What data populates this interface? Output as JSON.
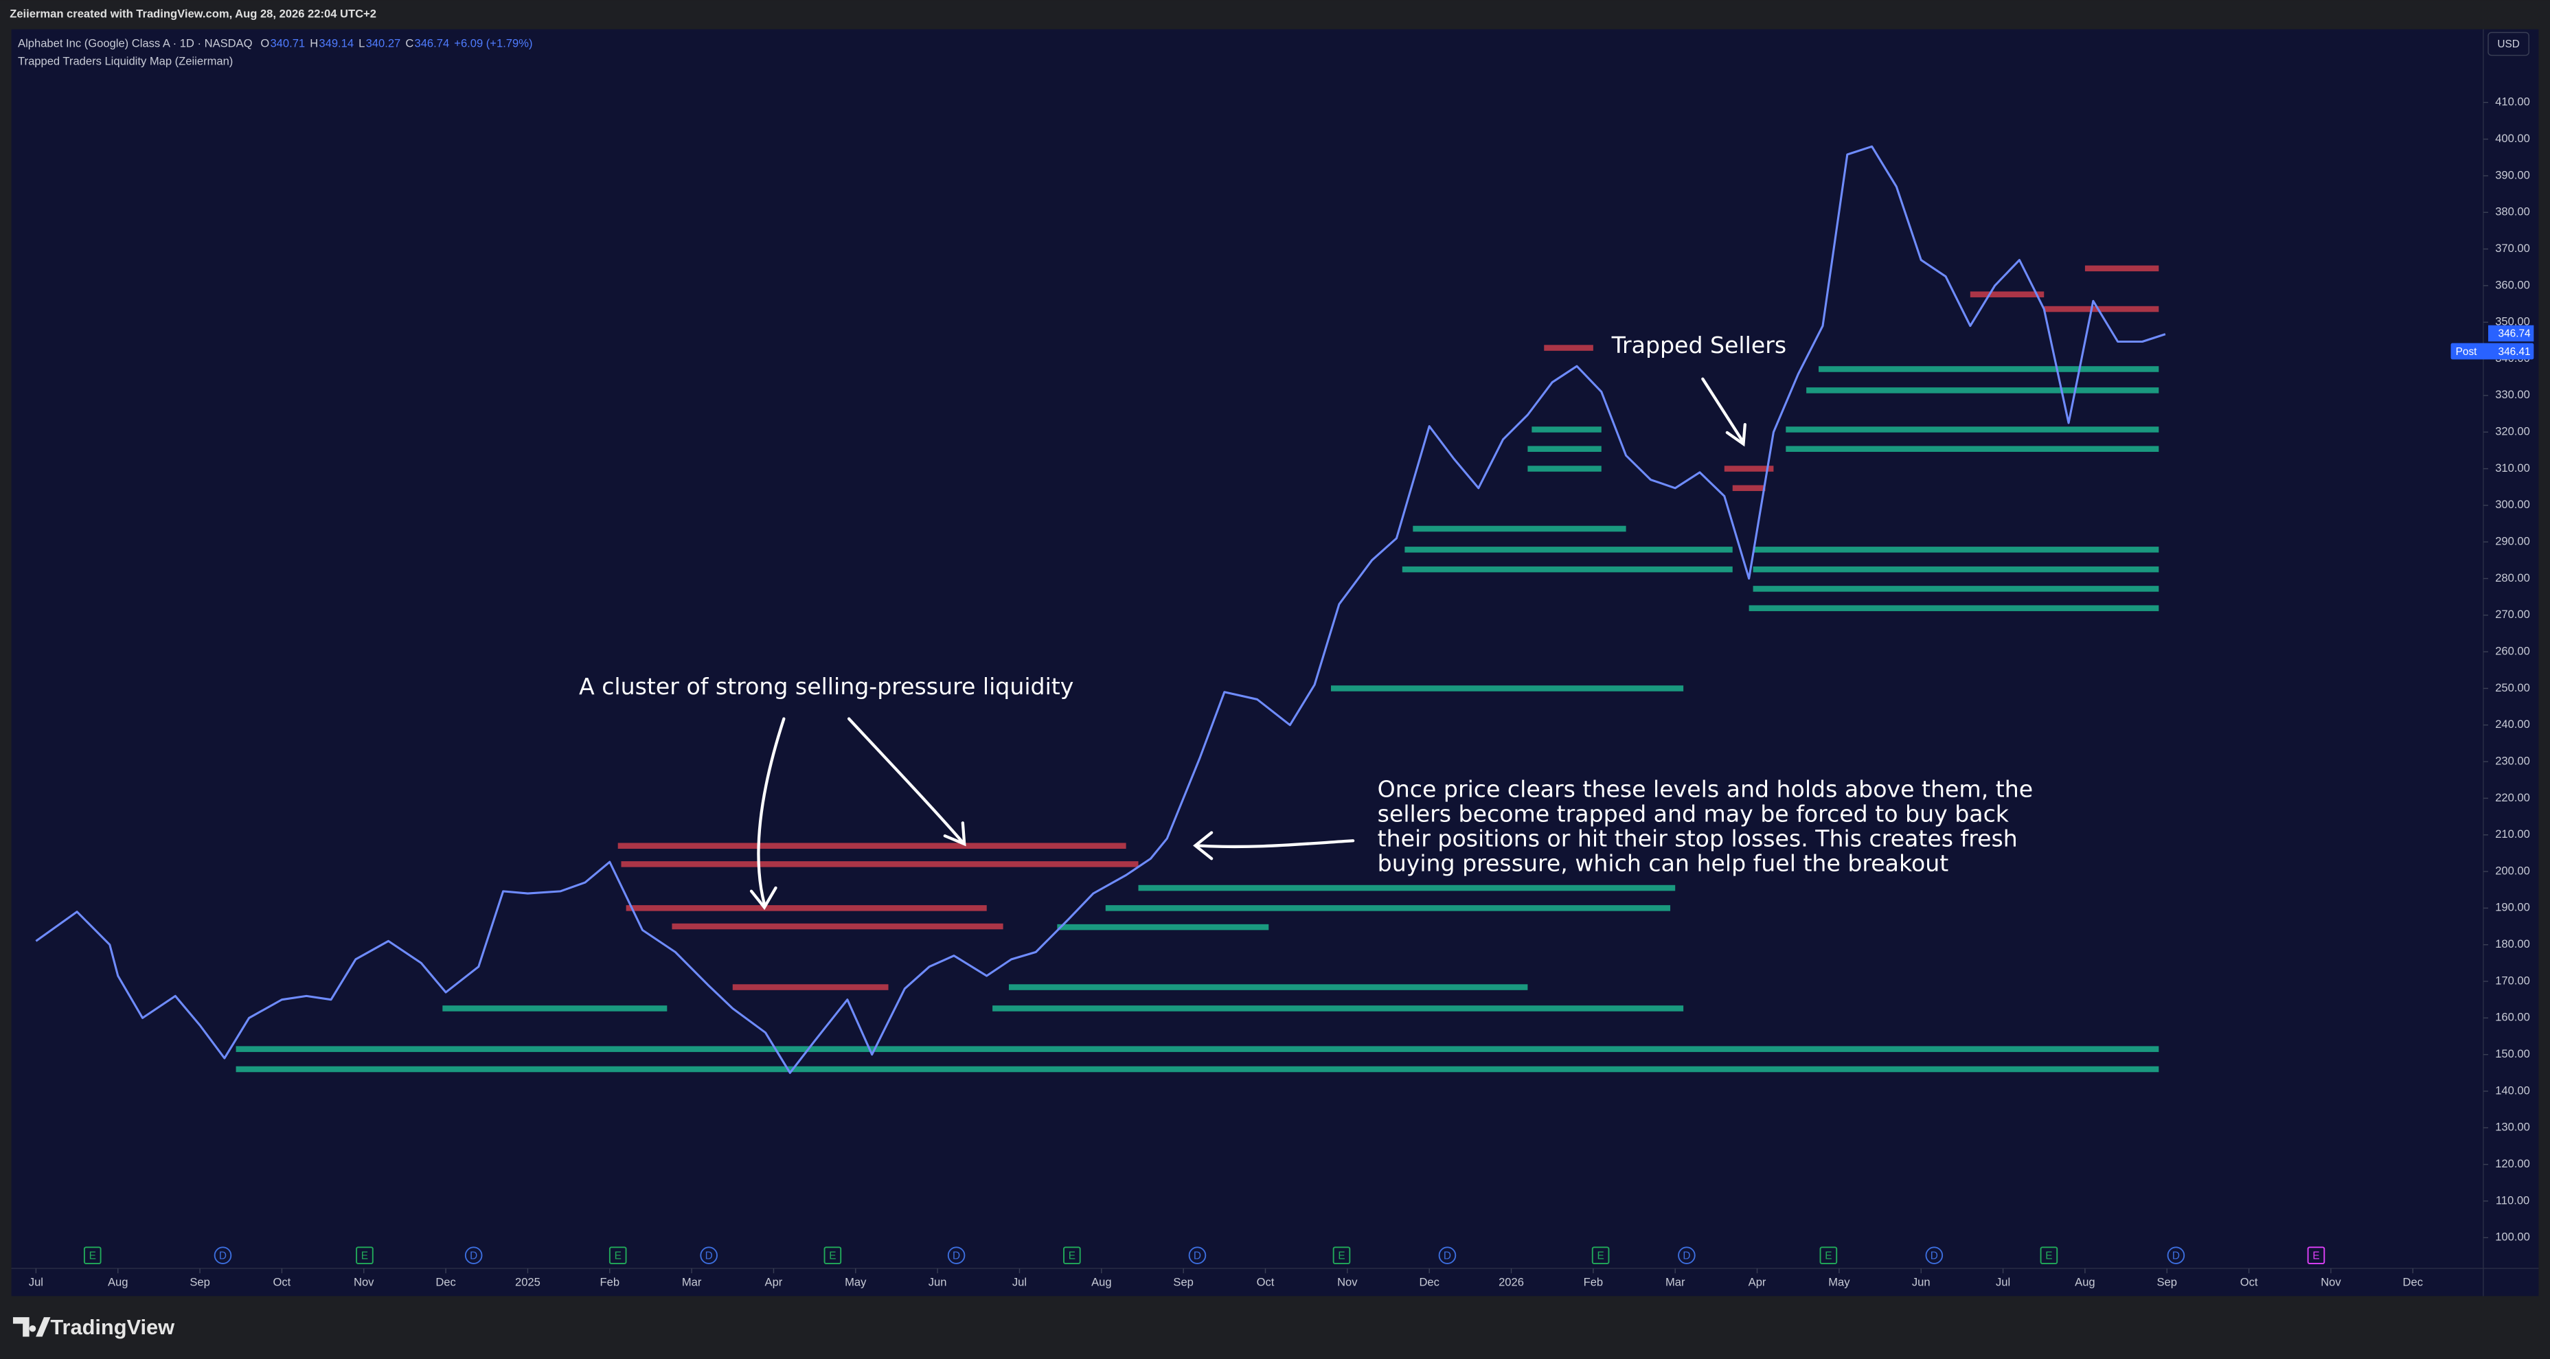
{
  "header": {
    "credit": "Zeiierman created with TradingView.com, Aug 28, 2026 22:04 UTC+2",
    "symbol": "Alphabet Inc (Google) Class A · 1D · NASDAQ",
    "ohlc": [
      {
        "label": "O",
        "value": "340.71"
      },
      {
        "label": "H",
        "value": "349.14"
      },
      {
        "label": "L",
        "value": "340.27"
      },
      {
        "label": "C",
        "value": "346.74"
      }
    ],
    "change": "+6.09 (+1.79%)",
    "indicator": "Trapped Traders Liquidity Map (Zeiierman)",
    "currency": "USD",
    "last_price": "346.74",
    "post_label": "Post",
    "post_price": "346.41",
    "logo": "TradingView"
  },
  "chart_data": {
    "type": "line",
    "xlim": [
      -0.3,
      29.86
    ],
    "ylim": [
      91.6,
      430
    ],
    "xticks": [
      {
        "value": 0,
        "label": "Jul"
      },
      {
        "value": 1,
        "label": "Aug"
      },
      {
        "value": 2,
        "label": "Sep"
      },
      {
        "value": 3,
        "label": "Oct"
      },
      {
        "value": 4,
        "label": "Nov"
      },
      {
        "value": 5,
        "label": "Dec"
      },
      {
        "value": 6,
        "label": "2025"
      },
      {
        "value": 7,
        "label": "Feb"
      },
      {
        "value": 8,
        "label": "Mar"
      },
      {
        "value": 9,
        "label": "Apr"
      },
      {
        "value": 10,
        "label": "May"
      },
      {
        "value": 11,
        "label": "Jun"
      },
      {
        "value": 12,
        "label": "Jul"
      },
      {
        "value": 13,
        "label": "Aug"
      },
      {
        "value": 14,
        "label": "Sep"
      },
      {
        "value": 15,
        "label": "Oct"
      },
      {
        "value": 16,
        "label": "Nov"
      },
      {
        "value": 17,
        "label": "Dec"
      },
      {
        "value": 18,
        "label": "2026"
      },
      {
        "value": 19,
        "label": "Feb"
      },
      {
        "value": 20,
        "label": "Mar"
      },
      {
        "value": 21,
        "label": "Apr"
      },
      {
        "value": 22,
        "label": "May"
      },
      {
        "value": 23,
        "label": "Jun"
      },
      {
        "value": 24,
        "label": "Jul"
      },
      {
        "value": 25,
        "label": "Aug"
      },
      {
        "value": 26,
        "label": "Sep"
      },
      {
        "value": 27,
        "label": "Oct"
      },
      {
        "value": 28,
        "label": "Nov"
      },
      {
        "value": 29,
        "label": "Dec"
      }
    ],
    "yticks": [
      {
        "value": 100,
        "label": "100.00"
      },
      {
        "value": 110,
        "label": "110.00"
      },
      {
        "value": 120,
        "label": "120.00"
      },
      {
        "value": 130,
        "label": "130.00"
      },
      {
        "value": 140,
        "label": "140.00"
      },
      {
        "value": 150,
        "label": "150.00"
      },
      {
        "value": 160,
        "label": "160.00"
      },
      {
        "value": 170,
        "label": "170.00"
      },
      {
        "value": 180,
        "label": "180.00"
      },
      {
        "value": 190,
        "label": "190.00"
      },
      {
        "value": 200,
        "label": "200.00"
      },
      {
        "value": 210,
        "label": "210.00"
      },
      {
        "value": 220,
        "label": "220.00"
      },
      {
        "value": 230,
        "label": "230.00"
      },
      {
        "value": 240,
        "label": "240.00"
      },
      {
        "value": 250,
        "label": "250.00"
      },
      {
        "value": 260,
        "label": "260.00"
      },
      {
        "value": 270,
        "label": "270.00"
      },
      {
        "value": 280,
        "label": "280.00"
      },
      {
        "value": 290,
        "label": "290.00"
      },
      {
        "value": 300,
        "label": "300.00"
      },
      {
        "value": 310,
        "label": "310.00"
      },
      {
        "value": 320,
        "label": "320.00"
      },
      {
        "value": 330,
        "label": "330.00"
      },
      {
        "value": 340,
        "label": "340.00"
      },
      {
        "value": 350,
        "label": "350.00"
      },
      {
        "value": 360,
        "label": "360.00"
      },
      {
        "value": 370,
        "label": "370.00"
      },
      {
        "value": 380,
        "label": "380.00"
      },
      {
        "value": 390,
        "label": "390.00"
      },
      {
        "value": 400,
        "label": "400.00"
      },
      {
        "value": 410,
        "label": "410.00"
      }
    ],
    "grid": false,
    "series": [
      {
        "color": "#6f8cff",
        "x": [
          0,
          0.5,
          0.9,
          1.0,
          1.3,
          1.7,
          2.0,
          2.3,
          2.6,
          3.0,
          3.3,
          3.6,
          3.9,
          4.3,
          4.7,
          5.0,
          5.4,
          5.7,
          6.0,
          6.4,
          6.7,
          7.0,
          7.4,
          7.8,
          8.2,
          8.5,
          8.9,
          9.2,
          9.5,
          9.9,
          10.2,
          10.6,
          10.9,
          11.2,
          11.6,
          11.9,
          12.2,
          12.6,
          12.9,
          13.3,
          13.6,
          13.8,
          14.2,
          14.5,
          14.9,
          15.3,
          15.6,
          15.9,
          16.3,
          16.6,
          17.0,
          17.3,
          17.6,
          17.9,
          18.2,
          18.5,
          18.8,
          19.1,
          19.4,
          19.7,
          20.0,
          20.3,
          20.6,
          20.9,
          21.2,
          21.5,
          21.8,
          22.1,
          22.4,
          22.7,
          23.0,
          23.3,
          23.6,
          23.9,
          24.2,
          24.5,
          24.8,
          25.1,
          25.4,
          25.7,
          25.98
        ],
        "values": [
          181,
          189,
          180,
          171.5,
          160,
          166,
          158,
          149,
          160,
          165,
          166,
          165,
          176,
          181,
          175,
          167,
          174,
          194.6,
          194,
          194.6,
          197,
          202.6,
          184,
          178,
          169,
          162.6,
          156,
          145,
          153.7,
          165,
          150,
          168,
          174,
          177,
          171.5,
          176,
          178,
          187,
          194,
          199,
          203.5,
          209,
          231,
          249,
          247,
          240,
          251,
          273,
          285,
          291,
          321.6,
          312.7,
          304.7,
          318,
          324.7,
          333.6,
          338,
          331,
          313.6,
          307,
          304.7,
          309,
          302.5,
          280,
          320,
          335.8,
          349,
          395.8,
          398,
          387,
          367,
          362.5,
          349,
          360,
          367,
          353.6,
          322.5,
          355.8,
          344.7,
          344.7,
          346.74
        ]
      }
    ],
    "level_groups": [
      {
        "color": "#e0424f",
        "levels": [
          [
            207,
            7.1,
            13.3
          ],
          [
            202,
            7.14,
            13.45
          ],
          [
            190,
            7.2,
            11.6
          ],
          [
            185,
            7.76,
            11.8
          ],
          [
            168.4,
            8.5,
            10.4
          ],
          [
            343,
            18.4,
            19.0
          ],
          [
            310,
            20.6,
            21.2
          ],
          [
            304.7,
            20.7,
            21.1
          ],
          [
            364.7,
            25.0,
            25.9
          ],
          [
            353.6,
            24.5,
            25.9
          ],
          [
            357.6,
            23.6,
            24.5
          ]
        ]
      },
      {
        "color": "#1fc79a",
        "levels": [
          [
            195.5,
            13.45,
            20.0
          ],
          [
            190,
            13.05,
            19.94
          ],
          [
            184.8,
            12.46,
            15.04
          ],
          [
            168.4,
            11.87,
            18.2
          ],
          [
            162.6,
            4.96,
            7.7
          ],
          [
            162.6,
            11.67,
            20.1
          ],
          [
            151.5,
            2.44,
            25.9
          ],
          [
            146,
            2.44,
            25.9
          ],
          [
            250,
            15.8,
            20.1
          ],
          [
            293.6,
            16.8,
            19.4
          ],
          [
            287.9,
            16.7,
            20.7
          ],
          [
            287.9,
            20.95,
            25.9
          ],
          [
            282.5,
            16.67,
            20.7
          ],
          [
            282.5,
            20.95,
            25.9
          ],
          [
            277.2,
            20.95,
            25.9
          ],
          [
            271.9,
            20.9,
            25.9
          ],
          [
            320.7,
            18.25,
            19.1
          ],
          [
            320.7,
            21.35,
            25.9
          ],
          [
            315.4,
            18.2,
            19.1
          ],
          [
            315.4,
            21.35,
            25.9
          ],
          [
            310,
            18.2,
            19.1
          ],
          [
            337.2,
            21.75,
            25.9
          ],
          [
            331.4,
            21.6,
            25.9
          ]
        ]
      }
    ],
    "events": [
      {
        "x": 0.69,
        "label": "E",
        "color": "#22ab5a"
      },
      {
        "x": 4.01,
        "label": "E",
        "color": "#22ab5a"
      },
      {
        "x": 7.1,
        "label": "E",
        "color": "#22ab5a"
      },
      {
        "x": 9.72,
        "label": "E",
        "color": "#22ab5a"
      },
      {
        "x": 12.64,
        "label": "E",
        "color": "#22ab5a"
      },
      {
        "x": 15.93,
        "label": "E",
        "color": "#22ab5a"
      },
      {
        "x": 19.09,
        "label": "E",
        "color": "#22ab5a"
      },
      {
        "x": 21.87,
        "label": "E",
        "color": "#22ab5a"
      },
      {
        "x": 24.56,
        "label": "E",
        "color": "#22ab5a"
      },
      {
        "x": 27.82,
        "label": "E",
        "color": "#e040fb"
      },
      {
        "x": 2.28,
        "label": "D",
        "color": "#3d6fe0"
      },
      {
        "x": 5.34,
        "label": "D",
        "color": "#3d6fe0"
      },
      {
        "x": 8.21,
        "label": "D",
        "color": "#3d6fe0"
      },
      {
        "x": 11.23,
        "label": "D",
        "color": "#3d6fe0"
      },
      {
        "x": 14.17,
        "label": "D",
        "color": "#3d6fe0"
      },
      {
        "x": 17.22,
        "label": "D",
        "color": "#3d6fe0"
      },
      {
        "x": 20.14,
        "label": "D",
        "color": "#3d6fe0"
      },
      {
        "x": 23.16,
        "label": "D",
        "color": "#3d6fe0"
      },
      {
        "x": 26.11,
        "label": "D",
        "color": "#3d6fe0"
      }
    ],
    "annotations": {
      "cluster": "A cluster of strong selling-pressure liquidity",
      "trapped": "Trapped Sellers",
      "explanation": [
        "Once price clears these levels and holds above them, the",
        "sellers become trapped and may be forced to buy back",
        "their positions or hit their stop losses. This creates fresh",
        "buying pressure, which can help fuel the breakout"
      ]
    }
  }
}
